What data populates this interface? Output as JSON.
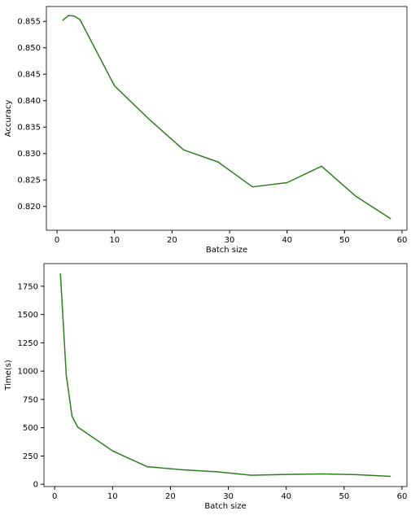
{
  "chart_data": [
    {
      "type": "line",
      "title": "",
      "xlabel": "Batch size",
      "ylabel": "Accuracy",
      "xlim": [
        -1.85,
        60.85
      ],
      "ylim": [
        0.8155,
        0.8578
      ],
      "grid": false,
      "color": "#2e7d1f",
      "x_ticks": [
        0,
        10,
        20,
        30,
        40,
        50,
        60
      ],
      "y_ticks": [
        0.82,
        0.825,
        0.83,
        0.835,
        0.84,
        0.845,
        0.85,
        0.855
      ],
      "x_tick_labels": [
        "0",
        "10",
        "20",
        "30",
        "40",
        "50",
        "60"
      ],
      "y_tick_labels": [
        "0.820",
        "0.825",
        "0.830",
        "0.835",
        "0.840",
        "0.845",
        "0.850",
        "0.855"
      ],
      "series": [
        {
          "x": [
            1,
            2,
            3,
            4,
            10,
            16,
            22,
            28,
            34,
            40,
            46,
            52,
            58
          ],
          "y": [
            0.8552,
            0.8561,
            0.856,
            0.8553,
            0.8428,
            0.8365,
            0.8307,
            0.8284,
            0.8237,
            0.8245,
            0.8276,
            0.8219,
            0.8177
          ]
        }
      ]
    },
    {
      "type": "line",
      "title": "",
      "xlabel": "Batch size",
      "ylabel": "Time(s)",
      "xlim": [
        -1.85,
        60.85
      ],
      "ylim": [
        -20,
        1950
      ],
      "grid": false,
      "color": "#2e7d1f",
      "x_ticks": [
        0,
        10,
        20,
        30,
        40,
        50,
        60
      ],
      "y_ticks": [
        0,
        250,
        500,
        750,
        1000,
        1250,
        1500,
        1750
      ],
      "x_tick_labels": [
        "0",
        "10",
        "20",
        "30",
        "40",
        "50",
        "60"
      ],
      "y_tick_labels": [
        "0",
        "250",
        "500",
        "750",
        "1000",
        "1250",
        "1500",
        "1750"
      ],
      "series": [
        {
          "x": [
            1,
            2,
            3,
            4,
            10,
            16,
            22,
            28,
            34,
            40,
            46,
            52,
            58
          ],
          "y": [
            1860,
            965,
            600,
            505,
            295,
            155,
            128,
            110,
            80,
            87,
            91,
            85,
            70
          ]
        }
      ]
    }
  ]
}
